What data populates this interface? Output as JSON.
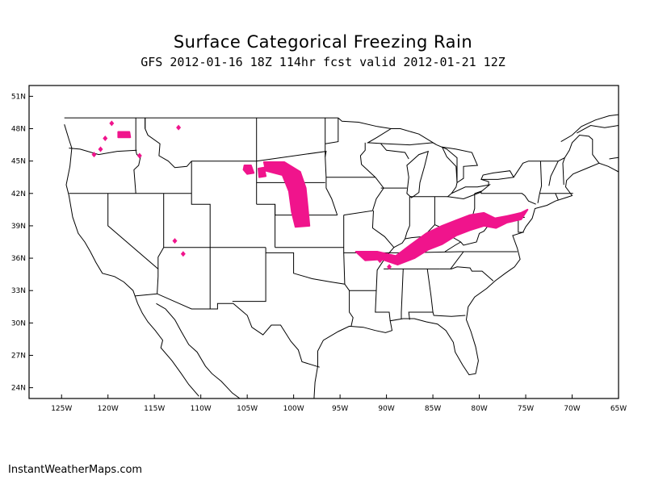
{
  "title": "Surface Categorical Freezing Rain",
  "subtitle": "GFS 2012-01-16 18Z 114hr fcst valid 2012-01-21 12Z",
  "footer": "InstantWeatherMaps.com",
  "map": {
    "lon_range": [
      -128.5,
      -65
    ],
    "lat_range": [
      23,
      52
    ],
    "lat_ticks": [
      {
        "value": 51,
        "label": "51N"
      },
      {
        "value": 48,
        "label": "48N"
      },
      {
        "value": 45,
        "label": "45N"
      },
      {
        "value": 42,
        "label": "42N"
      },
      {
        "value": 39,
        "label": "39N"
      },
      {
        "value": 36,
        "label": "36N"
      },
      {
        "value": 33,
        "label": "33N"
      },
      {
        "value": 30,
        "label": "30N"
      },
      {
        "value": 27,
        "label": "27N"
      },
      {
        "value": 24,
        "label": "24N"
      }
    ],
    "lon_ticks": [
      {
        "value": -125,
        "label": "125W"
      },
      {
        "value": -120,
        "label": "120W"
      },
      {
        "value": -115,
        "label": "115W"
      },
      {
        "value": -110,
        "label": "110W"
      },
      {
        "value": -105,
        "label": "105W"
      },
      {
        "value": -100,
        "label": "100W"
      },
      {
        "value": -95,
        "label": "95W"
      },
      {
        "value": -90,
        "label": "90W"
      },
      {
        "value": -85,
        "label": "85W"
      },
      {
        "value": -80,
        "label": "80W"
      },
      {
        "value": -75,
        "label": "75W"
      },
      {
        "value": -70,
        "label": "70W"
      },
      {
        "value": -65,
        "label": "65W"
      }
    ],
    "outline_color": "#000000",
    "freezing_rain_color": "#f0148c",
    "freezing_rain_areas": [
      {
        "name": "central-appalachia-band",
        "points": [
          [
            -93.3,
            36.6
          ],
          [
            -91,
            36.6
          ],
          [
            -89,
            36.2
          ],
          [
            -87.3,
            37.3
          ],
          [
            -85.7,
            38.3
          ],
          [
            -84,
            39
          ],
          [
            -82.5,
            39.5
          ],
          [
            -81,
            40
          ],
          [
            -79.5,
            40.2
          ],
          [
            -78.3,
            39.7
          ],
          [
            -77,
            39.9
          ],
          [
            -75.5,
            40.2
          ],
          [
            -74.8,
            40.5
          ],
          [
            -75.5,
            39.6
          ],
          [
            -77,
            39.3
          ],
          [
            -78.2,
            38.8
          ],
          [
            -79.5,
            39
          ],
          [
            -81,
            38.6
          ],
          [
            -82.5,
            38.1
          ],
          [
            -84,
            37.3
          ],
          [
            -85.5,
            36.8
          ],
          [
            -87,
            36
          ],
          [
            -88.8,
            35.4
          ],
          [
            -90.5,
            35.9
          ],
          [
            -92.3,
            35.8
          ]
        ]
      },
      {
        "name": "nebraska-band",
        "points": [
          [
            -103.2,
            44.9
          ],
          [
            -101,
            44.9
          ],
          [
            -99.3,
            44
          ],
          [
            -98.7,
            42.5
          ],
          [
            -98.5,
            40.8
          ],
          [
            -98.3,
            39
          ],
          [
            -99.8,
            38.9
          ],
          [
            -100.2,
            40.3
          ],
          [
            -100.5,
            42.2
          ],
          [
            -101.2,
            43.7
          ],
          [
            -103,
            44.1
          ]
        ]
      },
      {
        "name": "wyoming-patch",
        "points": [
          [
            -105.3,
            44.6
          ],
          [
            -104.6,
            44.6
          ],
          [
            -104.3,
            43.9
          ],
          [
            -105,
            43.8
          ],
          [
            -105.4,
            44.2
          ]
        ]
      },
      {
        "name": "wyoming-patch-2",
        "points": [
          [
            -103.8,
            44.3
          ],
          [
            -103.2,
            44.4
          ],
          [
            -103,
            43.6
          ],
          [
            -103.7,
            43.5
          ]
        ]
      },
      {
        "name": "washington-patch",
        "points": [
          [
            -118.9,
            47.7
          ],
          [
            -117.7,
            47.7
          ],
          [
            -117.6,
            47.2
          ],
          [
            -118.9,
            47.2
          ]
        ]
      }
    ],
    "freezing_rain_dots": [
      [
        -119.6,
        48.5
      ],
      [
        -120.3,
        47.1
      ],
      [
        -120.8,
        46.1
      ],
      [
        -121.5,
        45.6
      ],
      [
        -116.6,
        45.5
      ],
      [
        -112.4,
        48.1
      ],
      [
        -102.4,
        44.6
      ],
      [
        -99.9,
        41.1
      ],
      [
        -112.8,
        37.6
      ],
      [
        -111.9,
        36.4
      ],
      [
        -90.7,
        35.8
      ],
      [
        -89.7,
        35.2
      ]
    ]
  }
}
